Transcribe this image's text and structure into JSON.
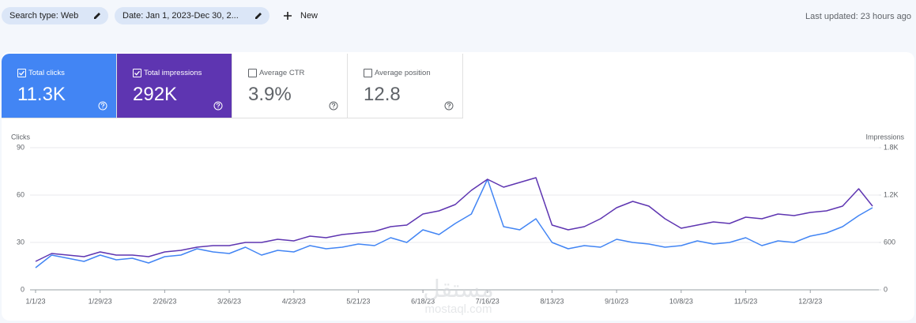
{
  "toolbar": {
    "chips": [
      "Search type: Web",
      "Date: Jan 1, 2023-Dec 30, 2..."
    ],
    "new_button": "New",
    "last_updated": "Last updated: 23 hours ago"
  },
  "metrics": [
    {
      "label": "Total clicks",
      "value": "11.3K",
      "selected": true,
      "color": "#4285f4"
    },
    {
      "label": "Total impressions",
      "value": "292K",
      "selected": true,
      "color": "#5e35b1"
    },
    {
      "label": "Average CTR",
      "value": "3.9%",
      "selected": false,
      "color": "#ffffff"
    },
    {
      "label": "Average position",
      "value": "12.8",
      "selected": false,
      "color": "#ffffff"
    }
  ],
  "chart_data": {
    "type": "line",
    "y_label": "Clicks",
    "y2_label": "Impressions",
    "x": [
      "1/1/23",
      "1/8/23",
      "1/15/23",
      "1/22/23",
      "1/29/23",
      "2/5/23",
      "2/12/23",
      "2/19/23",
      "2/26/23",
      "3/5/23",
      "3/12/23",
      "3/19/23",
      "3/26/23",
      "4/2/23",
      "4/9/23",
      "4/16/23",
      "4/23/23",
      "4/30/23",
      "5/7/23",
      "5/14/23",
      "5/21/23",
      "5/28/23",
      "6/4/23",
      "6/11/23",
      "6/18/23",
      "6/25/23",
      "7/2/23",
      "7/9/23",
      "7/16/23",
      "7/23/23",
      "7/30/23",
      "8/6/23",
      "8/13/23",
      "8/20/23",
      "8/27/23",
      "9/3/23",
      "9/10/23",
      "9/17/23",
      "9/24/23",
      "10/1/23",
      "10/8/23",
      "10/15/23",
      "10/22/23",
      "10/29/23",
      "11/5/23",
      "11/12/23",
      "11/19/23",
      "11/26/23",
      "12/3/23",
      "12/10/23",
      "12/17/23",
      "12/24/23",
      "12/30/23"
    ],
    "xlim": [
      "1/1/23",
      "12/30/23"
    ],
    "xticks": [
      "1/1/23",
      "1/29/23",
      "2/26/23",
      "3/26/23",
      "4/23/23",
      "5/21/23",
      "6/18/23",
      "7/16/23",
      "8/13/23",
      "9/10/23",
      "10/8/23",
      "11/5/23",
      "12/3/23"
    ],
    "ylim": [
      0,
      90
    ],
    "yticks": [
      0,
      30,
      60,
      90
    ],
    "y2lim": [
      0,
      1800
    ],
    "y2ticks": [
      0,
      600,
      {
        "value": 1200,
        "label": "1.2K"
      },
      {
        "value": 1800,
        "label": "1.8K"
      }
    ],
    "grid": true,
    "series": [
      {
        "name": "Clicks",
        "color": "#4285f4",
        "values": [
          14,
          22,
          20,
          18,
          22,
          19,
          20,
          17,
          21,
          22,
          26,
          24,
          23,
          27,
          22,
          25,
          24,
          28,
          26,
          27,
          29,
          28,
          33,
          30,
          38,
          35,
          42,
          48,
          70,
          40,
          38,
          45,
          30,
          26,
          28,
          27,
          32,
          30,
          29,
          27,
          28,
          31,
          29,
          30,
          33,
          28,
          31,
          30,
          34,
          36,
          40,
          47,
          52
        ]
      },
      {
        "name": "Impressions",
        "color": "#5e35b1",
        "axis": "y2",
        "values": [
          360,
          460,
          440,
          420,
          480,
          440,
          440,
          420,
          480,
          500,
          540,
          560,
          560,
          600,
          600,
          640,
          620,
          680,
          660,
          700,
          720,
          740,
          800,
          820,
          960,
          1000,
          1080,
          1260,
          1400,
          1300,
          1360,
          1420,
          820,
          760,
          800,
          900,
          1040,
          1120,
          1060,
          900,
          780,
          820,
          860,
          840,
          920,
          900,
          960,
          940,
          980,
          1000,
          1060,
          1280,
          1060
        ]
      }
    ]
  },
  "watermark": {
    "arabic": "مستقل",
    "latin": "mostaql.com"
  }
}
